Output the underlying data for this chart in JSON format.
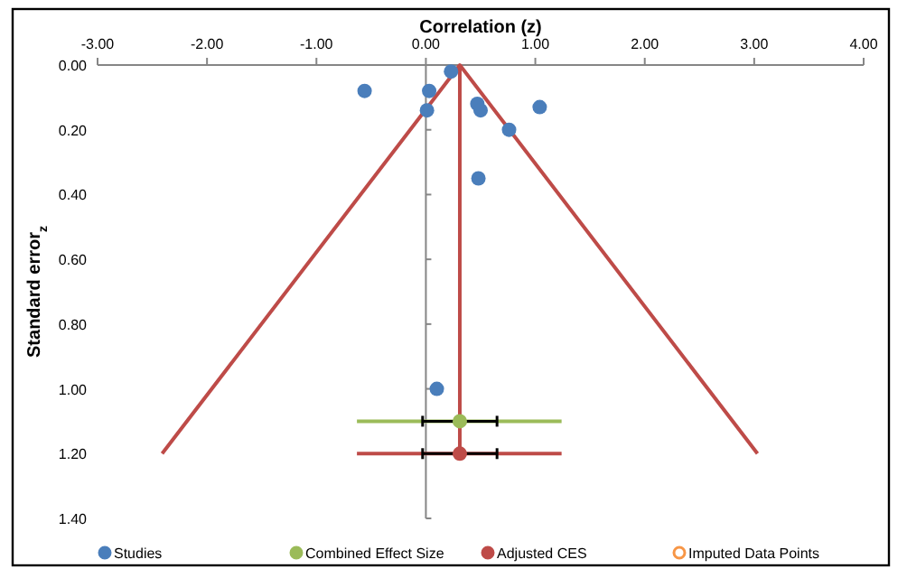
{
  "chart_data": {
    "type": "scatter",
    "xlabel": "Correlation (z)",
    "ylabel": "Standard error$_{z}$",
    "xlim": [
      -3,
      4
    ],
    "xticks": [
      {
        "value": -3,
        "label": "-3.00"
      },
      {
        "value": -2,
        "label": "-2.00"
      },
      {
        "value": -1,
        "label": "-1.00"
      },
      {
        "value": 0,
        "label": "0.00"
      },
      {
        "value": 1,
        "label": "1.00"
      },
      {
        "value": 2,
        "label": "2.00"
      },
      {
        "value": 3,
        "label": "3.00"
      },
      {
        "value": 4,
        "label": "4.00"
      }
    ],
    "ylim": [
      1.4,
      0
    ],
    "yticks": [
      {
        "value": 0,
        "label": "0.00"
      },
      {
        "value": 0.2,
        "label": "0.20"
      },
      {
        "value": 0.4,
        "label": "0.40"
      },
      {
        "value": 0.6,
        "label": "0.60"
      },
      {
        "value": 0.8,
        "label": "0.80"
      },
      {
        "value": 1,
        "label": "1.00"
      },
      {
        "value": 1.2,
        "label": "1.20"
      },
      {
        "value": 1.4,
        "label": "1.40"
      }
    ],
    "legend": "bottom",
    "marker": "circle",
    "series": [
      {
        "name": "Studies",
        "color": "#4a7ebb",
        "x": [
          0.23,
          -0.56,
          0.03,
          0.01,
          0.47,
          0.5,
          1.04,
          0.76,
          0.48,
          0.1
        ],
        "values": [
          0.02,
          0.08,
          0.08,
          0.14,
          0.12,
          0.14,
          0.13,
          0.2,
          0.35,
          1.0
        ]
      },
      {
        "type": "line",
        "marker": "none",
        "color": "#9bbb59",
        "x": [
          -0.63,
          1.24
        ],
        "values": [
          1.1,
          1.1
        ]
      },
      {
        "type": "line",
        "marker": "none",
        "color": "#be4b48",
        "x": [
          -0.63,
          1.24
        ],
        "values": [
          1.2,
          1.2
        ]
      },
      {
        "name": "Combined Effect Size",
        "color": "#9bbb59",
        "x": [
          0.31
        ],
        "values": [
          1.1
        ],
        "xerrors": [
          [
            -0.03,
            0.65
          ]
        ]
      },
      {
        "name": "Adjusted CES",
        "color": "#be4b48",
        "x": [
          0.31
        ],
        "values": [
          1.2
        ],
        "xerrors": [
          [
            -0.03,
            0.65
          ]
        ]
      },
      {
        "name": "Imputed Data Points",
        "color": "#f79646"
      },
      {
        "type": "line",
        "marker": "none",
        "color": "#be4b48",
        "x": [
          -2.41,
          0.31,
          3.03
        ],
        "values": [
          1.2,
          0,
          1.2
        ]
      },
      {
        "type": "line",
        "marker": "none",
        "color": "#be4b48",
        "x": [
          0.31,
          0.31
        ],
        "values": [
          0,
          1.2
        ]
      }
    ]
  }
}
